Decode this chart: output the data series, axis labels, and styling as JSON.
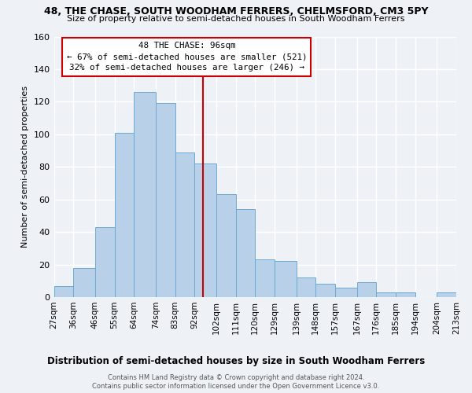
{
  "title": "48, THE CHASE, SOUTH WOODHAM FERRERS, CHELMSFORD, CM3 5PY",
  "subtitle": "Size of property relative to semi-detached houses in South Woodham Ferrers",
  "xlabel": "Distribution of semi-detached houses by size in South Woodham Ferrers",
  "ylabel": "Number of semi-detached properties",
  "footnote1": "Contains HM Land Registry data © Crown copyright and database right 2024.",
  "footnote2": "Contains public sector information licensed under the Open Government Licence v3.0.",
  "bin_edges": [
    27,
    36,
    46,
    55,
    64,
    74,
    83,
    92,
    102,
    111,
    120,
    129,
    139,
    148,
    157,
    167,
    176,
    185,
    194,
    204,
    213
  ],
  "bin_labels": [
    "27sqm",
    "36sqm",
    "46sqm",
    "55sqm",
    "64sqm",
    "74sqm",
    "83sqm",
    "92sqm",
    "102sqm",
    "111sqm",
    "120sqm",
    "129sqm",
    "139sqm",
    "148sqm",
    "157sqm",
    "167sqm",
    "176sqm",
    "185sqm",
    "194sqm",
    "204sqm",
    "213sqm"
  ],
  "counts": [
    7,
    18,
    43,
    101,
    126,
    119,
    89,
    82,
    63,
    54,
    23,
    22,
    12,
    8,
    6,
    9,
    3,
    3,
    0,
    3
  ],
  "bar_color": "#b8d0e8",
  "bar_edge_color": "#6aaad4",
  "vline_x": 96,
  "vline_color": "#cc0000",
  "box_text_line1": "48 THE CHASE: 96sqm",
  "box_text_line2": "← 67% of semi-detached houses are smaller (521)",
  "box_text_line3": "32% of semi-detached houses are larger (246) →",
  "box_color": "white",
  "box_edge_color": "#cc0000",
  "background_color": "#eef2f7",
  "ylim": [
    0,
    160
  ],
  "yticks": [
    0,
    20,
    40,
    60,
    80,
    100,
    120,
    140,
    160
  ]
}
